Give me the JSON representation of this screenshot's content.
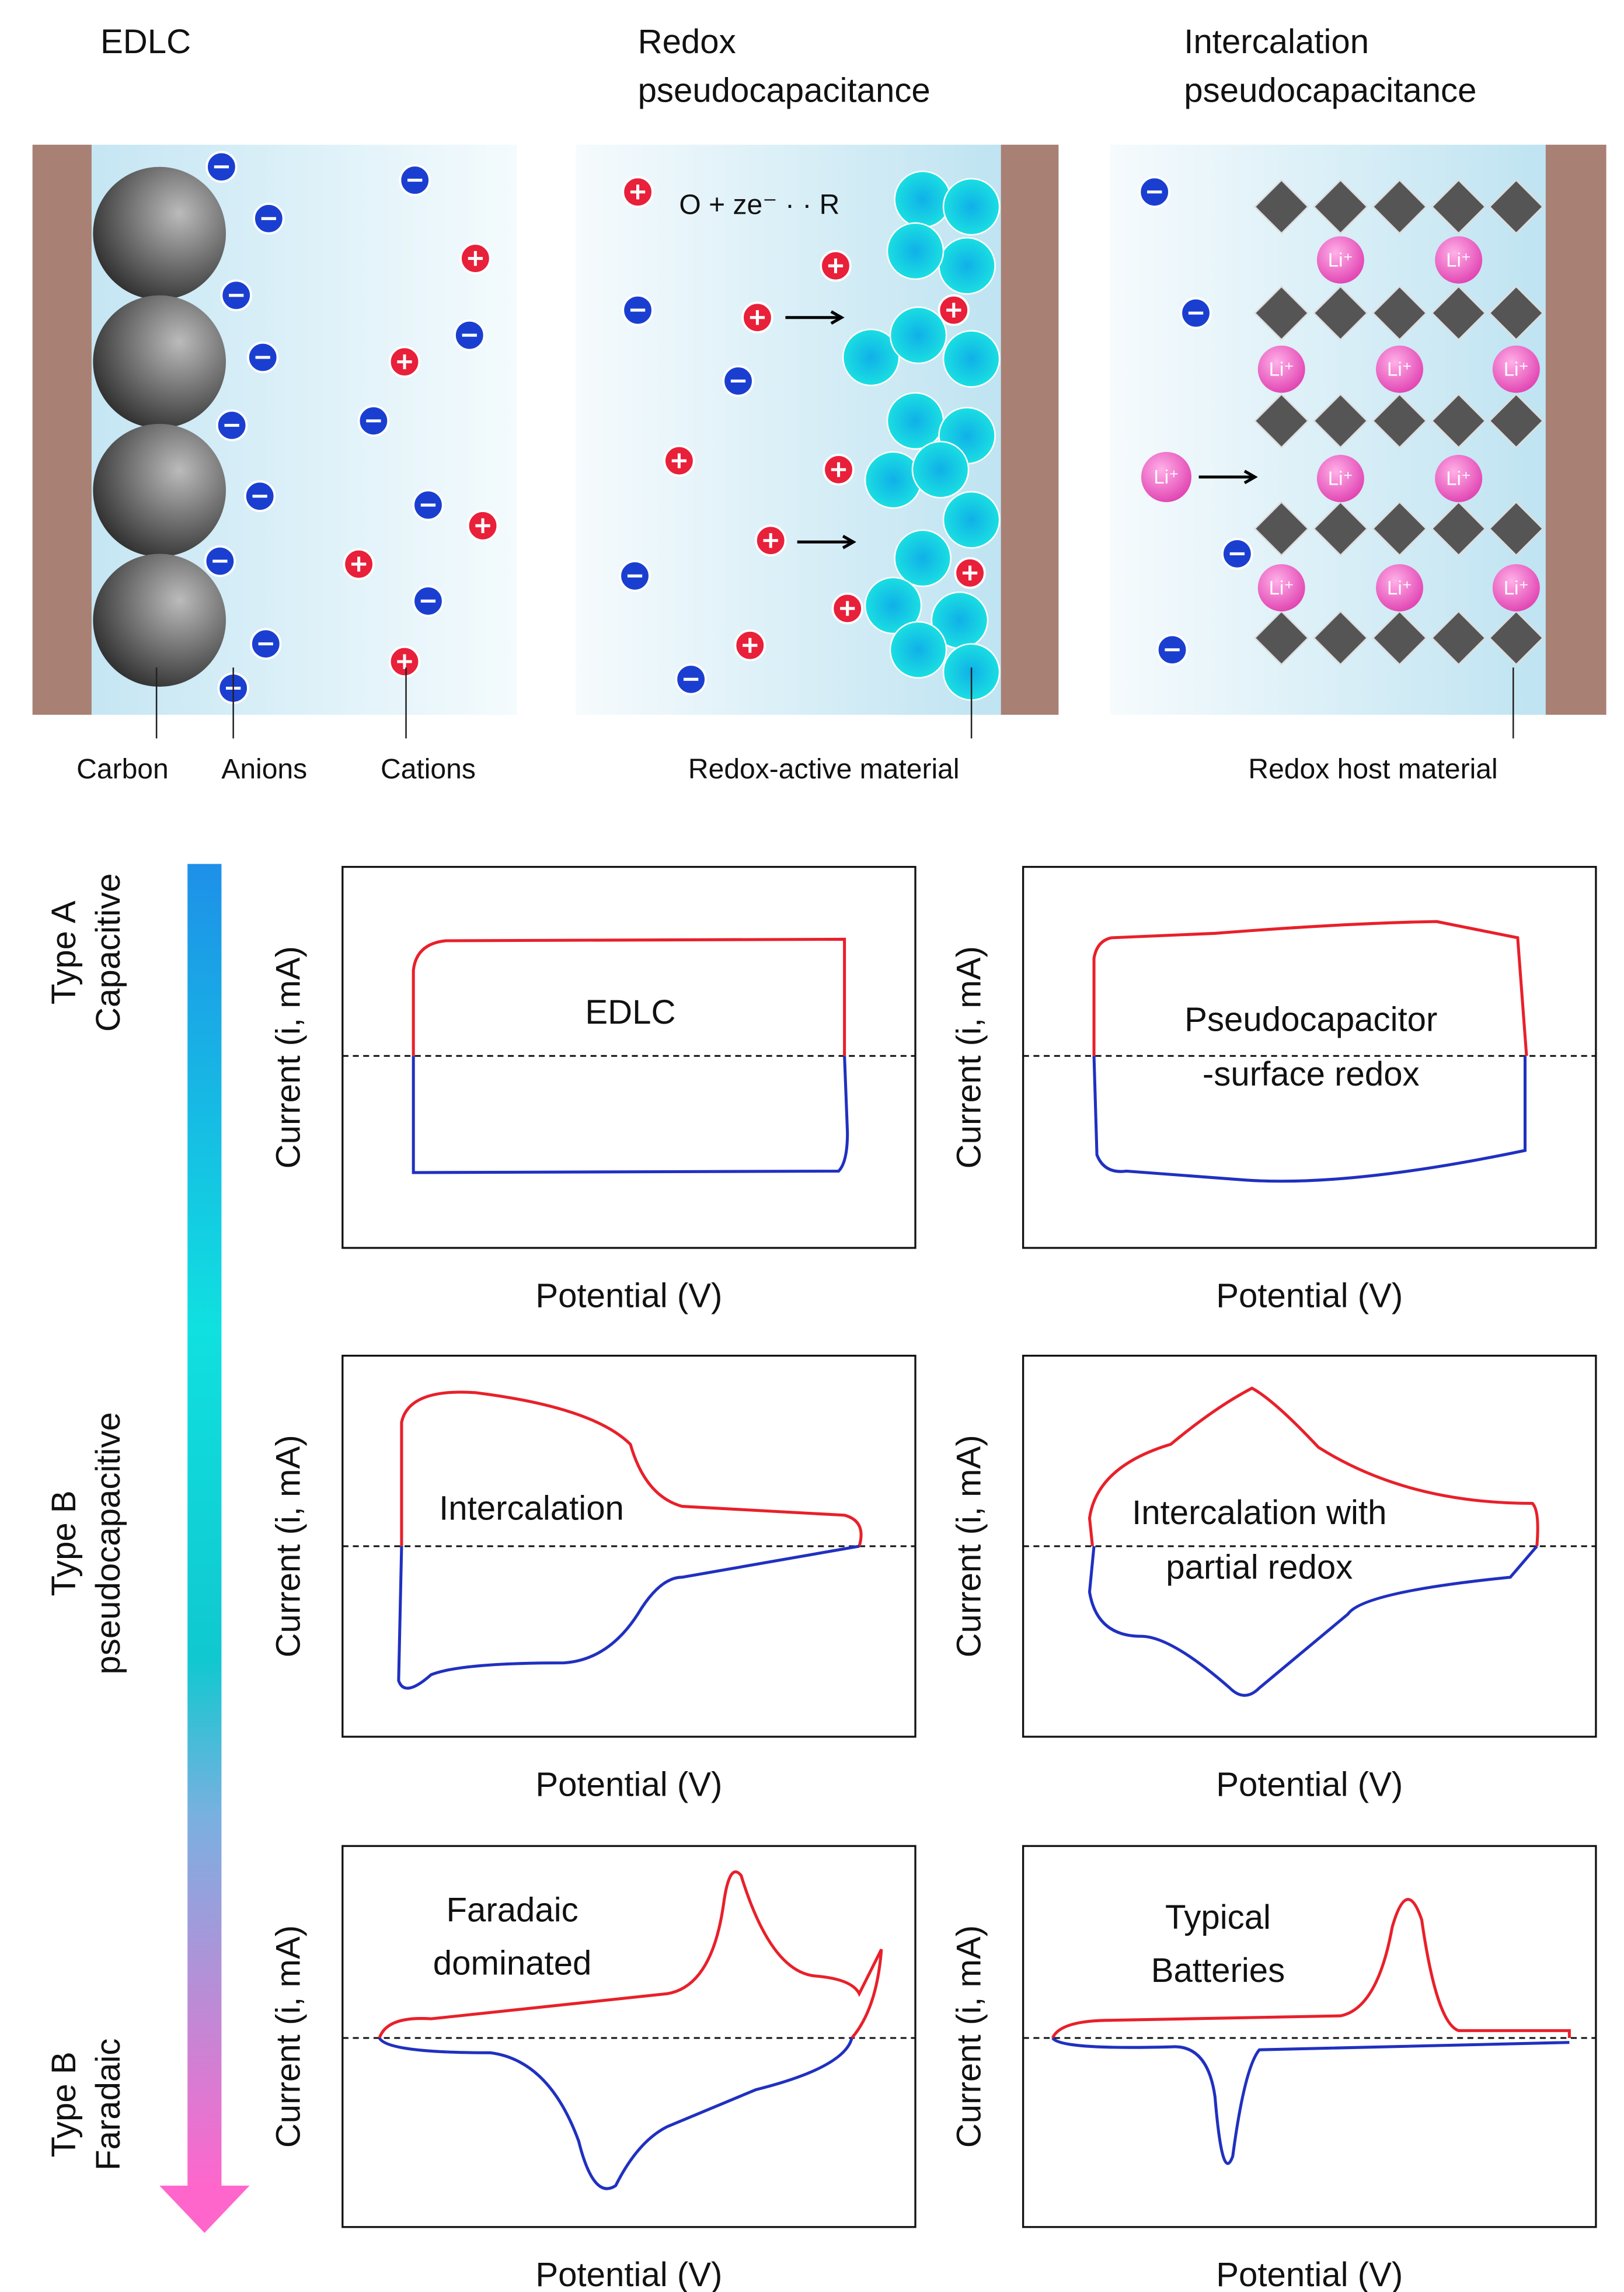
{
  "panels": [
    {
      "title": [
        "EDLC"
      ],
      "labels": [
        "Carbon",
        "Anions",
        "Cations"
      ]
    },
    {
      "title": [
        "Redox",
        "pseudocapacitance"
      ],
      "equation": "O + ze⁻ · · R",
      "labels": [
        "Redox-active material"
      ]
    },
    {
      "title": [
        "Intercalation",
        "pseudocapacitance"
      ],
      "ion_label": "Li⁺",
      "labels": [
        "Redox host material"
      ]
    }
  ],
  "types": [
    [
      "Type A",
      "Capacitive"
    ],
    [
      "Type B",
      "pseudocapacitive"
    ],
    [
      "Type B",
      "Faradaic"
    ]
  ],
  "plots": [
    {
      "label": [
        "EDLC"
      ],
      "x_label": "Potential (V)",
      "y_label": "Current (i, mA)"
    },
    {
      "label": [
        "Pseudocapacitor",
        "-surface redox"
      ],
      "x_label": "Potential (V)",
      "y_label": "Current (i, mA)"
    },
    {
      "label": [
        "Intercalation"
      ],
      "x_label": "Potential (V)",
      "y_label": "Current (i, mA)"
    },
    {
      "label": [
        "Intercalation with",
        "partial redox"
      ],
      "x_label": "Potential (V)",
      "y_label": "Current (i, mA)"
    },
    {
      "label": [
        "Faradaic",
        "dominated"
      ],
      "x_label": "Potential (V)",
      "y_label": "Current (i, mA)"
    },
    {
      "label": [
        "Typical",
        "Batteries"
      ],
      "x_label": "Potential (V)",
      "y_label": "Current (i, mA)"
    }
  ]
}
